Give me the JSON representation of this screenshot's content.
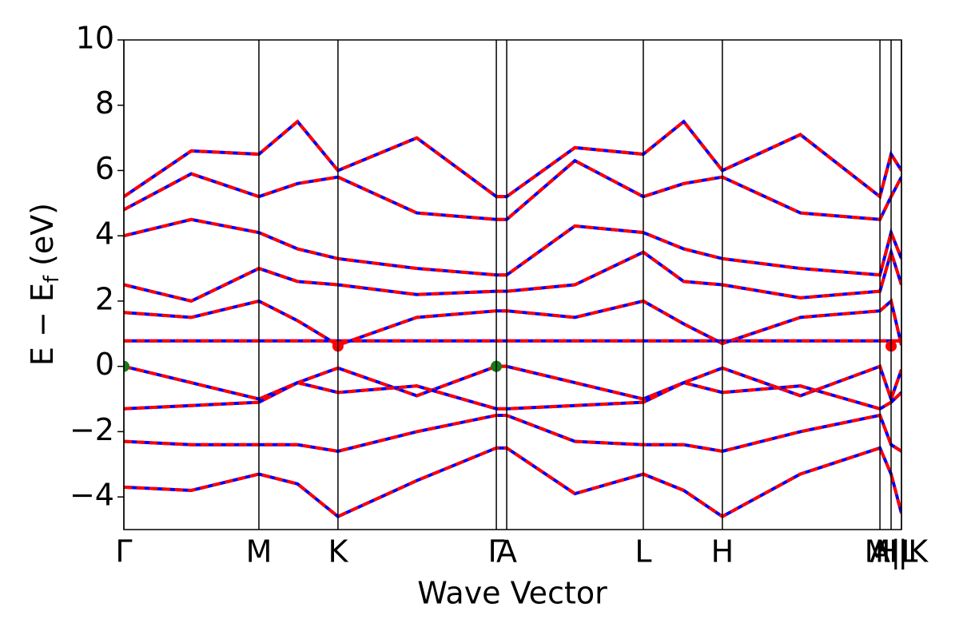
{
  "chart_data": {
    "type": "line",
    "xlabel": "Wave Vector",
    "ylabel": {
      "main": "E − E",
      "sub": "f",
      "unit": "(eV)"
    },
    "xlim": [
      0,
      3.0
    ],
    "ylim": [
      -5,
      10
    ],
    "xticks": [
      {
        "value": 0,
        "label": "Γ"
      },
      {
        "value": 0.521,
        "label": "M"
      },
      {
        "value": 0.826,
        "label": "K"
      },
      {
        "value": 1.437,
        "label": "Γ"
      },
      {
        "value": 1.477,
        "label": "A"
      },
      {
        "value": 2.004,
        "label": "L"
      },
      {
        "value": 2.309,
        "label": "H"
      },
      {
        "value": 2.917,
        "label": "A"
      },
      {
        "value": 2.96,
        "label": "M|L"
      },
      {
        "value": 3.0,
        "label": "H|K"
      }
    ],
    "yticks": [
      {
        "value": -4,
        "label": "−4"
      },
      {
        "value": -2,
        "label": "−2"
      },
      0,
      2,
      4,
      6,
      8,
      10
    ],
    "xgrid": true,
    "line_colors": [
      "#0000ff",
      "#ff0000"
    ],
    "x": [
      0,
      0.26,
      0.521,
      0.67,
      0.826,
      1.13,
      1.437,
      1.477,
      1.74,
      2.004,
      2.16,
      2.309,
      2.61,
      2.917,
      2.96,
      3.0
    ],
    "series": [
      {
        "values": [
          0.78,
          0.78,
          0.78,
          0.78,
          0.78,
          0.78,
          0.78,
          0.78,
          0.78,
          0.78,
          0.78,
          0.78,
          0.78,
          0.78,
          0.78,
          0.78
        ]
      },
      {
        "values": [
          0,
          -0.5,
          -1.0,
          -0.5,
          -0.05,
          -0.9,
          0,
          0,
          -0.5,
          -1.0,
          -0.5,
          -0.05,
          -0.9,
          0,
          -1.0,
          -0.1
        ]
      },
      {
        "values": [
          1.65,
          1.5,
          2.0,
          1.4,
          0.65,
          1.5,
          1.7,
          1.7,
          1.5,
          2.0,
          1.3,
          0.7,
          1.5,
          1.7,
          2.0,
          0.65
        ]
      },
      {
        "values": [
          2.5,
          2.0,
          3.0,
          2.6,
          2.5,
          2.2,
          2.3,
          2.3,
          2.5,
          3.5,
          2.6,
          2.5,
          2.1,
          2.3,
          3.5,
          2.5
        ]
      },
      {
        "values": [
          4.0,
          4.5,
          4.1,
          3.6,
          3.3,
          3.0,
          2.8,
          2.8,
          4.3,
          4.1,
          3.6,
          3.3,
          3.0,
          2.8,
          4.1,
          3.3
        ]
      },
      {
        "values": [
          4.8,
          5.9,
          5.2,
          5.6,
          5.8,
          4.7,
          4.5,
          4.5,
          6.3,
          5.2,
          5.6,
          5.8,
          4.7,
          4.5,
          5.2,
          5.8
        ]
      },
      {
        "values": [
          5.2,
          6.6,
          6.5,
          7.5,
          6.0,
          7.0,
          5.2,
          5.2,
          6.7,
          6.5,
          7.5,
          6.0,
          7.1,
          5.2,
          6.5,
          6.0
        ]
      },
      {
        "values": [
          -1.3,
          -1.2,
          -1.1,
          -0.5,
          -0.8,
          -0.6,
          -1.3,
          -1.3,
          -1.2,
          -1.1,
          -0.5,
          -0.8,
          -0.6,
          -1.3,
          -1.1,
          -0.8
        ]
      },
      {
        "values": [
          -2.3,
          -2.4,
          -2.4,
          -2.4,
          -2.6,
          -2.0,
          -1.5,
          -1.5,
          -2.3,
          -2.4,
          -2.4,
          -2.6,
          -2.0,
          -1.5,
          -2.4,
          -2.6
        ]
      },
      {
        "values": [
          -3.7,
          -3.8,
          -3.3,
          -3.6,
          -4.6,
          -3.5,
          -2.5,
          -2.5,
          -3.9,
          -3.3,
          -3.8,
          -4.6,
          -3.3,
          -2.5,
          -3.3,
          -4.5
        ]
      }
    ],
    "markers": [
      {
        "x": 0,
        "y": 0,
        "color": "#1a7a1a"
      },
      {
        "x": 1.437,
        "y": 0,
        "color": "#1a7a1a"
      },
      {
        "x": 0.826,
        "y": 0.62,
        "color": "#ff0000"
      },
      {
        "x": 2.96,
        "y": 0.62,
        "color": "#ff0000"
      }
    ]
  }
}
